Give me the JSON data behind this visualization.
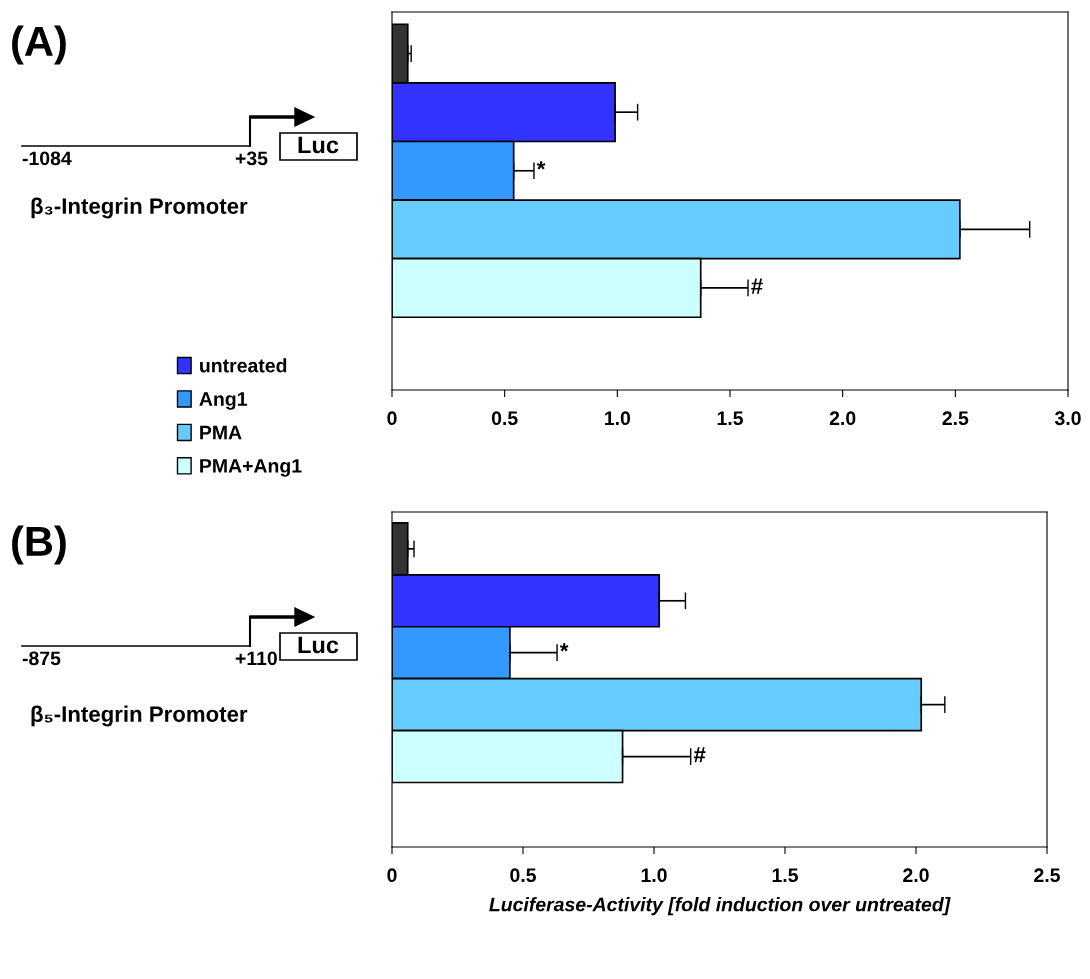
{
  "chart_data": [
    {
      "type": "bar",
      "orientation": "horizontal",
      "categories": [
        null
      ],
      "legend": "left",
      "annotations": [
        "-1084",
        "+35",
        "Luc",
        "β₃-Integrin Promoter",
        "(A)"
      ],
      "xlim": [
        0,
        3
      ],
      "xticks": [
        0,
        0.5,
        {
          "value": 1,
          "label": "1.0"
        },
        1.5,
        {
          "value": 2,
          "label": "2.0"
        },
        2.5,
        {
          "value": 3,
          "label": "3.0"
        }
      ],
      "series": [
        {
          "color": "#333333",
          "values": [
            0.07
          ],
          "errors": [
            [
              0.07,
              0.085
            ]
          ]
        },
        {
          "name": "untreated",
          "color": "#3333ff",
          "values": [
            0.99
          ],
          "errors": [
            [
              0.99,
              1.09
            ]
          ]
        },
        {
          "name": "Ang1",
          "color": "#3399ff",
          "values": [
            0.54
          ],
          "errors": [
            [
              0.54,
              0.63
            ]
          ],
          "value_labels": [
            "*"
          ]
        },
        {
          "name": "PMA",
          "color": "#66ccff",
          "values": [
            2.52
          ],
          "errors": [
            [
              2.52,
              2.83
            ]
          ]
        },
        {
          "name": "PMA+Ang1",
          "color": "#ccffff",
          "values": [
            1.37
          ],
          "errors": [
            [
              1.37,
              1.58
            ]
          ],
          "value_labels": [
            "#"
          ]
        }
      ]
    },
    {
      "type": "bar",
      "orientation": "horizontal",
      "categories": [
        null
      ],
      "xlabel": "Luciferase-Activity [fold induction over untreated]",
      "annotations": [
        "-875",
        "+110",
        "Luc",
        "β₅-Integrin Promoter",
        "(B)",
        {
          "text": "#",
          "x": 1.14
        }
      ],
      "xlim": [
        0,
        2.5
      ],
      "xticks": [
        0,
        0.5,
        {
          "value": 1,
          "label": "1.0"
        },
        1.5,
        {
          "value": 2,
          "label": "2.0"
        },
        2.5
      ],
      "series": [
        {
          "color": "#333333",
          "values": [
            0.06
          ],
          "errors": [
            [
              0.06,
              0.084
            ]
          ]
        },
        {
          "color": "#3333ff",
          "values": [
            1.02
          ],
          "errors": [
            [
              1.02,
              1.12
            ]
          ]
        },
        {
          "color": "#3399ff",
          "values": [
            0.45
          ],
          "errors": [
            [
              0.45,
              0.63
            ]
          ],
          "value_labels": [
            "*"
          ]
        },
        {
          "color": "#66ccff",
          "values": [
            2.02
          ],
          "errors": [
            [
              2.02,
              2.11
            ]
          ]
        },
        {
          "color": "#ccffff",
          "values": [
            0.88
          ],
          "errors": [
            [
              0.88,
              1.14
            ]
          ]
        }
      ]
    }
  ]
}
